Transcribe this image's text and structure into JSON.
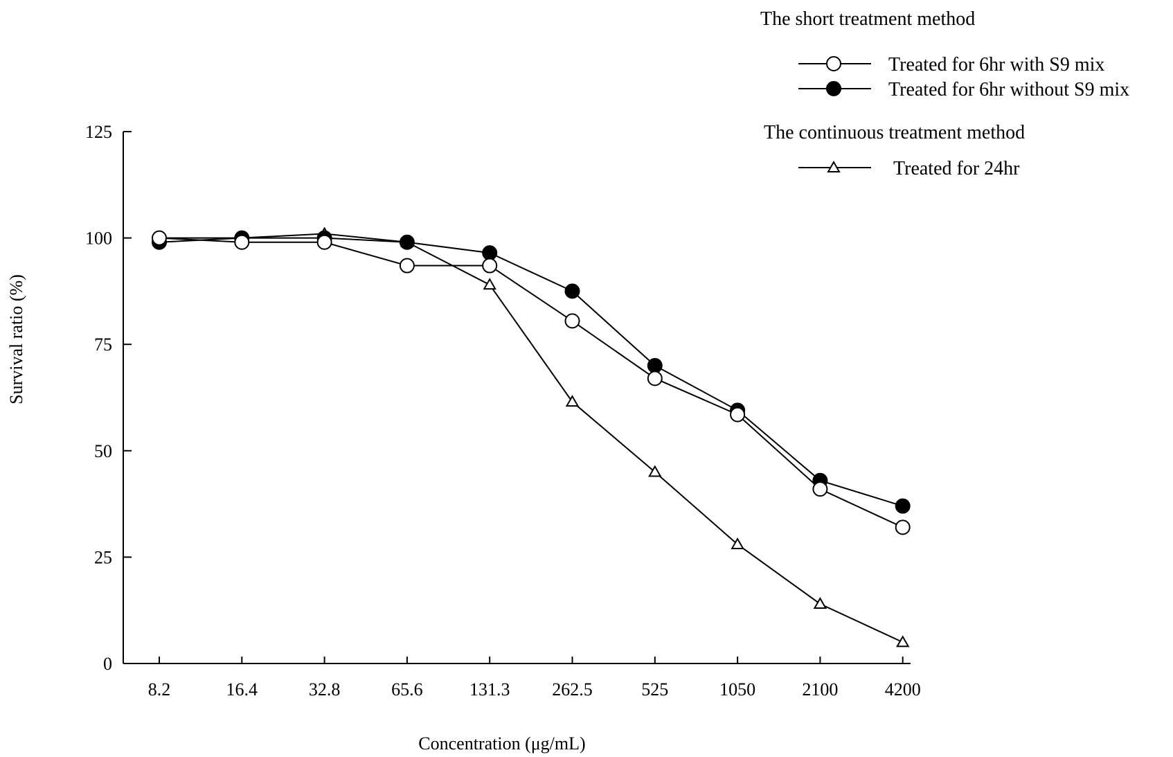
{
  "chart_data": {
    "type": "line",
    "xlabel": "Concentration  (μg/mL)",
    "ylabel": "Survival ratio  (%)",
    "categories": [
      "8.2",
      "16.4",
      "32.8",
      "65.6",
      "131.3",
      "262.5",
      "525",
      "1050",
      "2100",
      "4200"
    ],
    "ylim": [
      0,
      125
    ],
    "yticks": [
      "0",
      "25",
      "50",
      "75",
      "100",
      "125"
    ],
    "legend_groups": [
      {
        "title": "The short treatment method",
        "series_indices": [
          0,
          1
        ]
      },
      {
        "title": "The continuous treatment method",
        "series_indices": [
          2
        ]
      }
    ],
    "series": [
      {
        "name": "Treated for 6hr with S9 mix",
        "marker": "circle-open",
        "values": [
          100,
          99,
          99,
          93.5,
          93.5,
          80.5,
          67,
          58.5,
          41,
          32
        ]
      },
      {
        "name": "Treated for 6hr without S9 mix",
        "marker": "circle-filled",
        "values": [
          99,
          100,
          100,
          99,
          96.5,
          87.5,
          70,
          59.5,
          43,
          37
        ]
      },
      {
        "name": "Treated for 24hr",
        "marker": "triangle-open",
        "values": [
          100,
          100,
          101,
          99,
          89,
          61.5,
          45,
          28,
          14,
          5
        ]
      }
    ]
  }
}
